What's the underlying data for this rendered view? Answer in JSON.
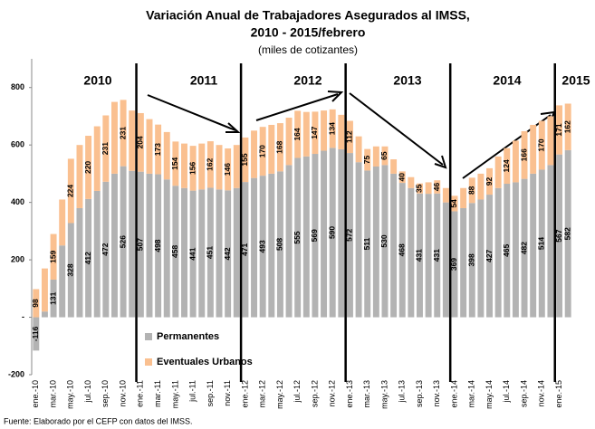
{
  "chart_data": {
    "type": "stacked_bar",
    "title": "Variación Anual de Trabajadores Asegurados al IMSS,",
    "title_line2": "2010 - 2015/febrero",
    "subtitle": "(miles de cotizantes)",
    "source": "Fuente: Elaborado por el CEFP con datos del IMSS.",
    "annotations": [
      "2010",
      "2011",
      "2012",
      "2013",
      "2014",
      "2015"
    ],
    "categories": [
      "ene.-10",
      null,
      "mar.-10",
      null,
      "may.-10",
      null,
      "jul.-10",
      null,
      "sep.-10",
      null,
      "nov.-10",
      null,
      "ene.-11",
      null,
      "mar.-11",
      null,
      "may.-11",
      null,
      "jul.-11",
      null,
      "sep.-11",
      null,
      "nov.-11",
      null,
      "ene.-12",
      null,
      "mar.-12",
      null,
      "may.-12",
      null,
      "jul.-12",
      null,
      "sep.-12",
      null,
      "nov.-12",
      null,
      "ene.-13",
      null,
      "mar.-13",
      null,
      "may.-13",
      null,
      "jul.-13",
      null,
      "sep.-13",
      null,
      "nov.-13",
      null,
      "ene.-14",
      null,
      "mar.-14",
      null,
      "may.-14",
      null,
      "jul.-14",
      null,
      "sep.-14",
      null,
      "nov.-14",
      null,
      "ene.-15",
      null
    ],
    "series": [
      {
        "name": "Permanentes",
        "color": "#b3b3b3",
        "values": [
          -116,
          20,
          131,
          250,
          328,
          380,
          412,
          440,
          472,
          500,
          526,
          510,
          507,
          500,
          498,
          480,
          458,
          450,
          441,
          445,
          451,
          445,
          442,
          450,
          471,
          485,
          493,
          500,
          508,
          530,
          555,
          560,
          569,
          580,
          590,
          585,
          572,
          540,
          511,
          525,
          530,
          500,
          468,
          450,
          431,
          430,
          431,
          400,
          369,
          380,
          398,
          410,
          427,
          450,
          465,
          470,
          482,
          500,
          514,
          530,
          567,
          582
        ],
        "value_labels": [
          -116,
          null,
          131,
          null,
          328,
          null,
          412,
          null,
          472,
          null,
          526,
          null,
          507,
          null,
          498,
          null,
          458,
          null,
          441,
          null,
          451,
          null,
          442,
          null,
          471,
          null,
          493,
          null,
          508,
          null,
          555,
          null,
          569,
          null,
          590,
          null,
          572,
          null,
          511,
          null,
          530,
          null,
          468,
          null,
          431,
          null,
          431,
          null,
          369,
          null,
          398,
          null,
          427,
          null,
          465,
          null,
          482,
          null,
          514,
          null,
          567,
          582
        ]
      },
      {
        "name": "Eventuales Urbanos",
        "color": "#fac090",
        "values": [
          98,
          150,
          159,
          160,
          224,
          220,
          220,
          225,
          231,
          250,
          231,
          210,
          204,
          190,
          173,
          165,
          154,
          155,
          156,
          160,
          162,
          155,
          146,
          150,
          155,
          165,
          170,
          170,
          168,
          165,
          164,
          155,
          147,
          140,
          134,
          120,
          112,
          90,
          75,
          70,
          65,
          50,
          40,
          38,
          35,
          40,
          46,
          50,
          54,
          70,
          88,
          90,
          92,
          110,
          124,
          145,
          166,
          170,
          170,
          170,
          171,
          162
        ],
        "value_labels": [
          98,
          null,
          159,
          null,
          224,
          null,
          220,
          null,
          231,
          null,
          231,
          null,
          204,
          null,
          173,
          null,
          154,
          null,
          156,
          null,
          162,
          null,
          146,
          null,
          155,
          null,
          170,
          null,
          168,
          null,
          164,
          null,
          147,
          null,
          134,
          null,
          112,
          null,
          75,
          null,
          65,
          null,
          40,
          null,
          35,
          null,
          46,
          null,
          54,
          null,
          88,
          null,
          92,
          null,
          124,
          null,
          166,
          null,
          170,
          null,
          171,
          162
        ]
      }
    ],
    "ylim": [
      -200,
      900
    ],
    "yticks": [
      -200,
      {
        "value": 0,
        "label": "-"
      },
      200,
      400,
      600,
      800
    ],
    "grid": false
  }
}
